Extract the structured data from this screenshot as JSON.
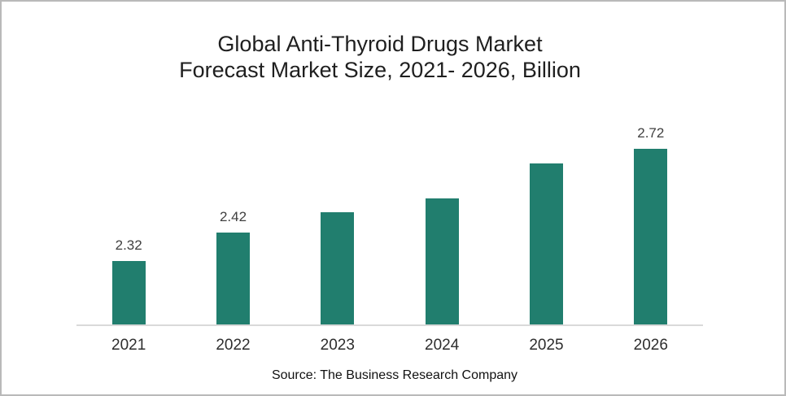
{
  "chart_data": {
    "type": "bar",
    "title_lines": [
      "Global Anti-Thyroid Drugs Market",
      "Forecast Market Size, 2021- 2026, Billion"
    ],
    "categories": [
      "2021",
      "2022",
      "2023",
      "2024",
      "2025",
      "2026"
    ],
    "values": [
      2.32,
      2.42,
      2.49,
      2.54,
      2.66,
      2.72
    ],
    "data_labels": [
      "2.32",
      "2.42",
      "",
      "",
      "",
      "2.72"
    ],
    "ylim": [
      2.1,
      2.8
    ],
    "bar_color": "#217e6e",
    "grid": false,
    "legend": false,
    "source_note": "Source: The Business Research Company"
  }
}
